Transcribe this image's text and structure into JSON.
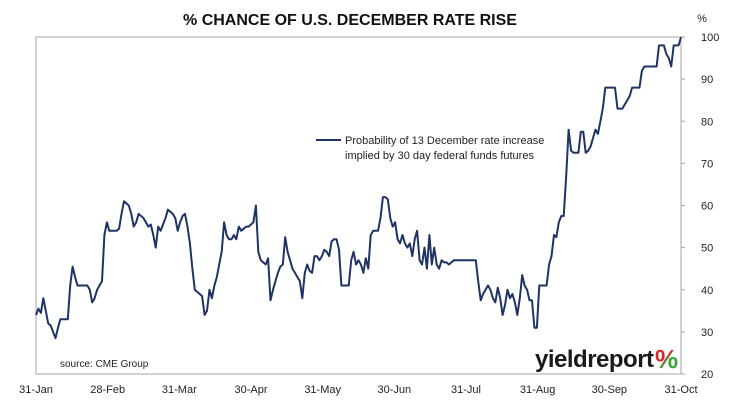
{
  "chart_data": {
    "type": "line",
    "title": "% CHANCE OF U.S. DECEMBER RATE RISE",
    "y_unit_label": "%",
    "y_range": [
      20,
      100
    ],
    "y_ticks": [
      20,
      30,
      40,
      50,
      60,
      70,
      80,
      90,
      100
    ],
    "x_ticks": [
      "31-Jan",
      "28-Feb",
      "31-Mar",
      "30-Apr",
      "31-May",
      "30-Jun",
      "31-Jul",
      "31-Aug",
      "30-Sep",
      "31-Oct"
    ],
    "grid": false,
    "legend_position": "upper-middle",
    "series": [
      {
        "name": "Probability of 13 December rate increase implied by 30 day federal funds futures",
        "color": "#1f3464",
        "points": [
          [
            0,
            34
          ],
          [
            1,
            35.5
          ],
          [
            2,
            34.5
          ],
          [
            3,
            38
          ],
          [
            4,
            35
          ],
          [
            5,
            32
          ],
          [
            6,
            31.5
          ],
          [
            7,
            30
          ],
          [
            8,
            28.5
          ],
          [
            9,
            31
          ],
          [
            10,
            33
          ],
          [
            11,
            33
          ],
          [
            12,
            33
          ],
          [
            13,
            33
          ],
          [
            14,
            41
          ],
          [
            15,
            45.5
          ],
          [
            16,
            43
          ],
          [
            17,
            41
          ],
          [
            18,
            41
          ],
          [
            19,
            41
          ],
          [
            20,
            41
          ],
          [
            21,
            41
          ],
          [
            22,
            40
          ],
          [
            23,
            37
          ],
          [
            24,
            38
          ],
          [
            25,
            40
          ],
          [
            26,
            41
          ],
          [
            27,
            42
          ],
          [
            28,
            53
          ],
          [
            29,
            56
          ],
          [
            30,
            54
          ],
          [
            31,
            54
          ],
          [
            32,
            54
          ],
          [
            33,
            54
          ],
          [
            34,
            54.5
          ],
          [
            35,
            58
          ],
          [
            36,
            61
          ],
          [
            37,
            60.5
          ],
          [
            38,
            60
          ],
          [
            39,
            58
          ],
          [
            40,
            55
          ],
          [
            41,
            56
          ],
          [
            42,
            58
          ],
          [
            43,
            57.5
          ],
          [
            44,
            57
          ],
          [
            45,
            56
          ],
          [
            46,
            55
          ],
          [
            47,
            55.5
          ],
          [
            48,
            53
          ],
          [
            49,
            50
          ],
          [
            50,
            55
          ],
          [
            51,
            54
          ],
          [
            52,
            55.5
          ],
          [
            53,
            57
          ],
          [
            54,
            59
          ],
          [
            55,
            58.5
          ],
          [
            56,
            58
          ],
          [
            57,
            57
          ],
          [
            58,
            54
          ],
          [
            59,
            56
          ],
          [
            60,
            57.5
          ],
          [
            61,
            58
          ],
          [
            62,
            55
          ],
          [
            63,
            51
          ],
          [
            64,
            45
          ],
          [
            65,
            40
          ],
          [
            66,
            39.5
          ],
          [
            67,
            39
          ],
          [
            68,
            38.5
          ],
          [
            69,
            34
          ],
          [
            70,
            35
          ],
          [
            71,
            40
          ],
          [
            72,
            38
          ],
          [
            73,
            41
          ],
          [
            74,
            43
          ],
          [
            75,
            46
          ],
          [
            76,
            49
          ],
          [
            77,
            56
          ],
          [
            78,
            53
          ],
          [
            79,
            52
          ],
          [
            80,
            52
          ],
          [
            81,
            53
          ],
          [
            82,
            52
          ],
          [
            83,
            55
          ],
          [
            84,
            54
          ],
          [
            85,
            54.5
          ],
          [
            86,
            55
          ],
          [
            87,
            55
          ],
          [
            88,
            55.5
          ],
          [
            89,
            56
          ],
          [
            90,
            60
          ],
          [
            91,
            49
          ],
          [
            92,
            47
          ],
          [
            93,
            46.5
          ],
          [
            94,
            46
          ],
          [
            95,
            47.5
          ],
          [
            96,
            37.5
          ],
          [
            97,
            40
          ],
          [
            98,
            42
          ],
          [
            99,
            44
          ],
          [
            100,
            45.5
          ],
          [
            101,
            46
          ],
          [
            102,
            52.5
          ],
          [
            103,
            49
          ],
          [
            104,
            47
          ],
          [
            105,
            45
          ],
          [
            106,
            44
          ],
          [
            107,
            43
          ],
          [
            108,
            42
          ],
          [
            109,
            38
          ],
          [
            110,
            44
          ],
          [
            111,
            46
          ],
          [
            112,
            44.5
          ],
          [
            113,
            44
          ],
          [
            114,
            48
          ],
          [
            115,
            48
          ],
          [
            116,
            47
          ],
          [
            117,
            48
          ],
          [
            118,
            49.5
          ],
          [
            119,
            49
          ],
          [
            120,
            48
          ],
          [
            121,
            51.5
          ],
          [
            122,
            52
          ],
          [
            123,
            52
          ],
          [
            124,
            49.5
          ],
          [
            125,
            41
          ],
          [
            126,
            41
          ],
          [
            127,
            41
          ],
          [
            128,
            41
          ],
          [
            129,
            47
          ],
          [
            130,
            49
          ],
          [
            131,
            46
          ],
          [
            132,
            47
          ],
          [
            133,
            46
          ],
          [
            134,
            44
          ],
          [
            135,
            47.5
          ],
          [
            136,
            45
          ],
          [
            137,
            53
          ],
          [
            138,
            54
          ],
          [
            139,
            54
          ],
          [
            140,
            54
          ],
          [
            141,
            57
          ],
          [
            142,
            62
          ],
          [
            143,
            62
          ],
          [
            144,
            61.5
          ],
          [
            145,
            57
          ],
          [
            146,
            55
          ],
          [
            147,
            56
          ],
          [
            148,
            52
          ],
          [
            149,
            51
          ],
          [
            150,
            53
          ],
          [
            151,
            51
          ],
          [
            152,
            50
          ],
          [
            153,
            51
          ],
          [
            154,
            48
          ],
          [
            155,
            52
          ],
          [
            156,
            54
          ],
          [
            157,
            47
          ],
          [
            158,
            46
          ],
          [
            159,
            50
          ],
          [
            160,
            45
          ],
          [
            161,
            53
          ],
          [
            162,
            46
          ],
          [
            163,
            50
          ],
          [
            164,
            46
          ],
          [
            165,
            45
          ],
          [
            166,
            47
          ],
          [
            167,
            46.5
          ],
          [
            168,
            46.5
          ],
          [
            169,
            46
          ],
          [
            170,
            46.5
          ],
          [
            171,
            47
          ],
          [
            172,
            47
          ],
          [
            173,
            47
          ],
          [
            174,
            47
          ],
          [
            175,
            47
          ],
          [
            176,
            47
          ],
          [
            177,
            47
          ],
          [
            178,
            47
          ],
          [
            179,
            47
          ],
          [
            180,
            47
          ],
          [
            181,
            42
          ],
          [
            182,
            37.5
          ],
          [
            183,
            39
          ],
          [
            184,
            40
          ],
          [
            185,
            41
          ],
          [
            186,
            40
          ],
          [
            187,
            38
          ],
          [
            188,
            37
          ],
          [
            189,
            40.5
          ],
          [
            190,
            38
          ],
          [
            191,
            34
          ],
          [
            192,
            36.5
          ],
          [
            193,
            40
          ],
          [
            194,
            38
          ],
          [
            195,
            39
          ],
          [
            196,
            37
          ],
          [
            197,
            34
          ],
          [
            198,
            38
          ],
          [
            199,
            43.5
          ],
          [
            200,
            41
          ],
          [
            201,
            40
          ],
          [
            202,
            37.5
          ],
          [
            203,
            37.5
          ],
          [
            204,
            31
          ],
          [
            205,
            31
          ],
          [
            206,
            41
          ],
          [
            207,
            41
          ],
          [
            208,
            41
          ],
          [
            209,
            41
          ],
          [
            210,
            46
          ],
          [
            211,
            48
          ],
          [
            212,
            53
          ],
          [
            213,
            52.5
          ],
          [
            214,
            56
          ],
          [
            215,
            57.5
          ],
          [
            216,
            57.5
          ],
          [
            217,
            67
          ],
          [
            218,
            78
          ],
          [
            219,
            73
          ],
          [
            220,
            72.5
          ],
          [
            221,
            72.5
          ],
          [
            222,
            72.5
          ],
          [
            223,
            77.5
          ],
          [
            224,
            77.5
          ],
          [
            225,
            72.5
          ],
          [
            226,
            73
          ],
          [
            227,
            74
          ],
          [
            228,
            76
          ],
          [
            229,
            78
          ],
          [
            230,
            77
          ],
          [
            231,
            80
          ],
          [
            232,
            83
          ],
          [
            233,
            88
          ],
          [
            234,
            88
          ],
          [
            235,
            88
          ],
          [
            236,
            88
          ],
          [
            237,
            88
          ],
          [
            238,
            83
          ],
          [
            239,
            83
          ],
          [
            240,
            83
          ],
          [
            241,
            84
          ],
          [
            242,
            85
          ],
          [
            243,
            86
          ],
          [
            244,
            88
          ],
          [
            245,
            88
          ],
          [
            246,
            88
          ],
          [
            247,
            88
          ],
          [
            248,
            92
          ],
          [
            249,
            93
          ],
          [
            250,
            93
          ],
          [
            251,
            93
          ],
          [
            252,
            93
          ],
          [
            253,
            93
          ],
          [
            254,
            93
          ],
          [
            255,
            98
          ],
          [
            256,
            98
          ],
          [
            257,
            98
          ],
          [
            258,
            96
          ],
          [
            259,
            95
          ],
          [
            260,
            93
          ],
          [
            261,
            98
          ],
          [
            262,
            98
          ],
          [
            263,
            98
          ],
          [
            264,
            100
          ]
        ]
      }
    ]
  },
  "legend": {
    "line1": "Probability of 13 December rate increase",
    "line2": "implied by 30 day federal funds futures"
  },
  "source_label": "source: CME Group",
  "logo": {
    "text": "yieldreport",
    "pct": "%"
  }
}
